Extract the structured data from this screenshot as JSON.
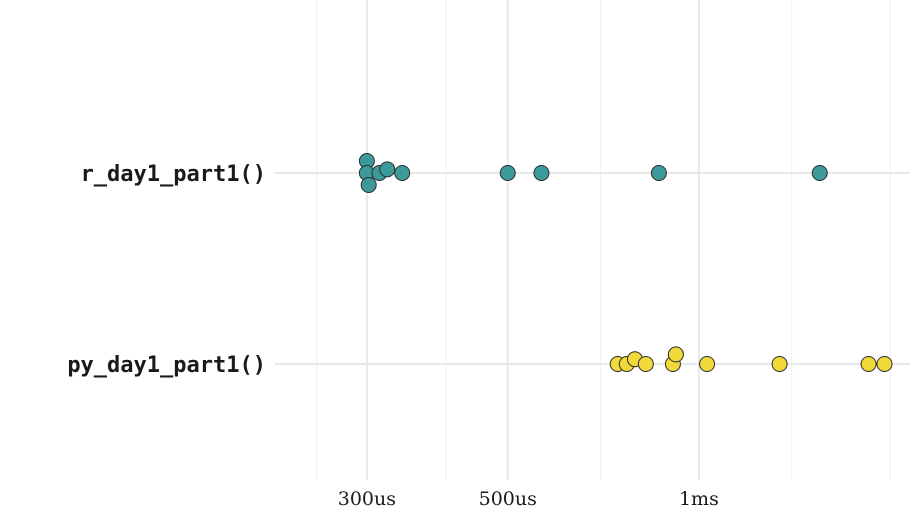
{
  "chart_data": {
    "type": "scatter",
    "x_scale": "log",
    "x_unit": "us",
    "x_ticks": [
      {
        "value": 300,
        "label": "300us"
      },
      {
        "value": 500,
        "label": "500us"
      },
      {
        "value": 1000,
        "label": "1ms"
      }
    ],
    "x_minor_ticks": [
      250,
      400,
      700,
      1400,
      2000
    ],
    "xlim": [
      215,
      2150
    ],
    "grid": true,
    "legend": "none",
    "categories": [
      "r_day1_part1()",
      "py_day1_part1()"
    ],
    "series": [
      {
        "category": "r_day1_part1()",
        "color": "#3d9a9a",
        "points": [
          {
            "x": 300,
            "offset": 1
          },
          {
            "x": 300,
            "offset": 0
          },
          {
            "x": 302,
            "offset": -1
          },
          {
            "x": 314,
            "offset": 0
          },
          {
            "x": 323,
            "offset": 0.3
          },
          {
            "x": 341,
            "offset": 0
          },
          {
            "x": 500,
            "offset": 0
          },
          {
            "x": 565,
            "offset": 0
          },
          {
            "x": 865,
            "offset": 0
          },
          {
            "x": 1550,
            "offset": 0
          }
        ]
      },
      {
        "category": "py_day1_part1()",
        "color": "#f2d93a",
        "points": [
          {
            "x": 745,
            "offset": 0
          },
          {
            "x": 770,
            "offset": 0
          },
          {
            "x": 793,
            "offset": 0.4
          },
          {
            "x": 825,
            "offset": 0
          },
          {
            "x": 910,
            "offset": 0
          },
          {
            "x": 920,
            "offset": 0.8
          },
          {
            "x": 1030,
            "offset": 0
          },
          {
            "x": 1340,
            "offset": 0
          },
          {
            "x": 1850,
            "offset": 0
          },
          {
            "x": 1960,
            "offset": 0
          }
        ]
      }
    ]
  }
}
